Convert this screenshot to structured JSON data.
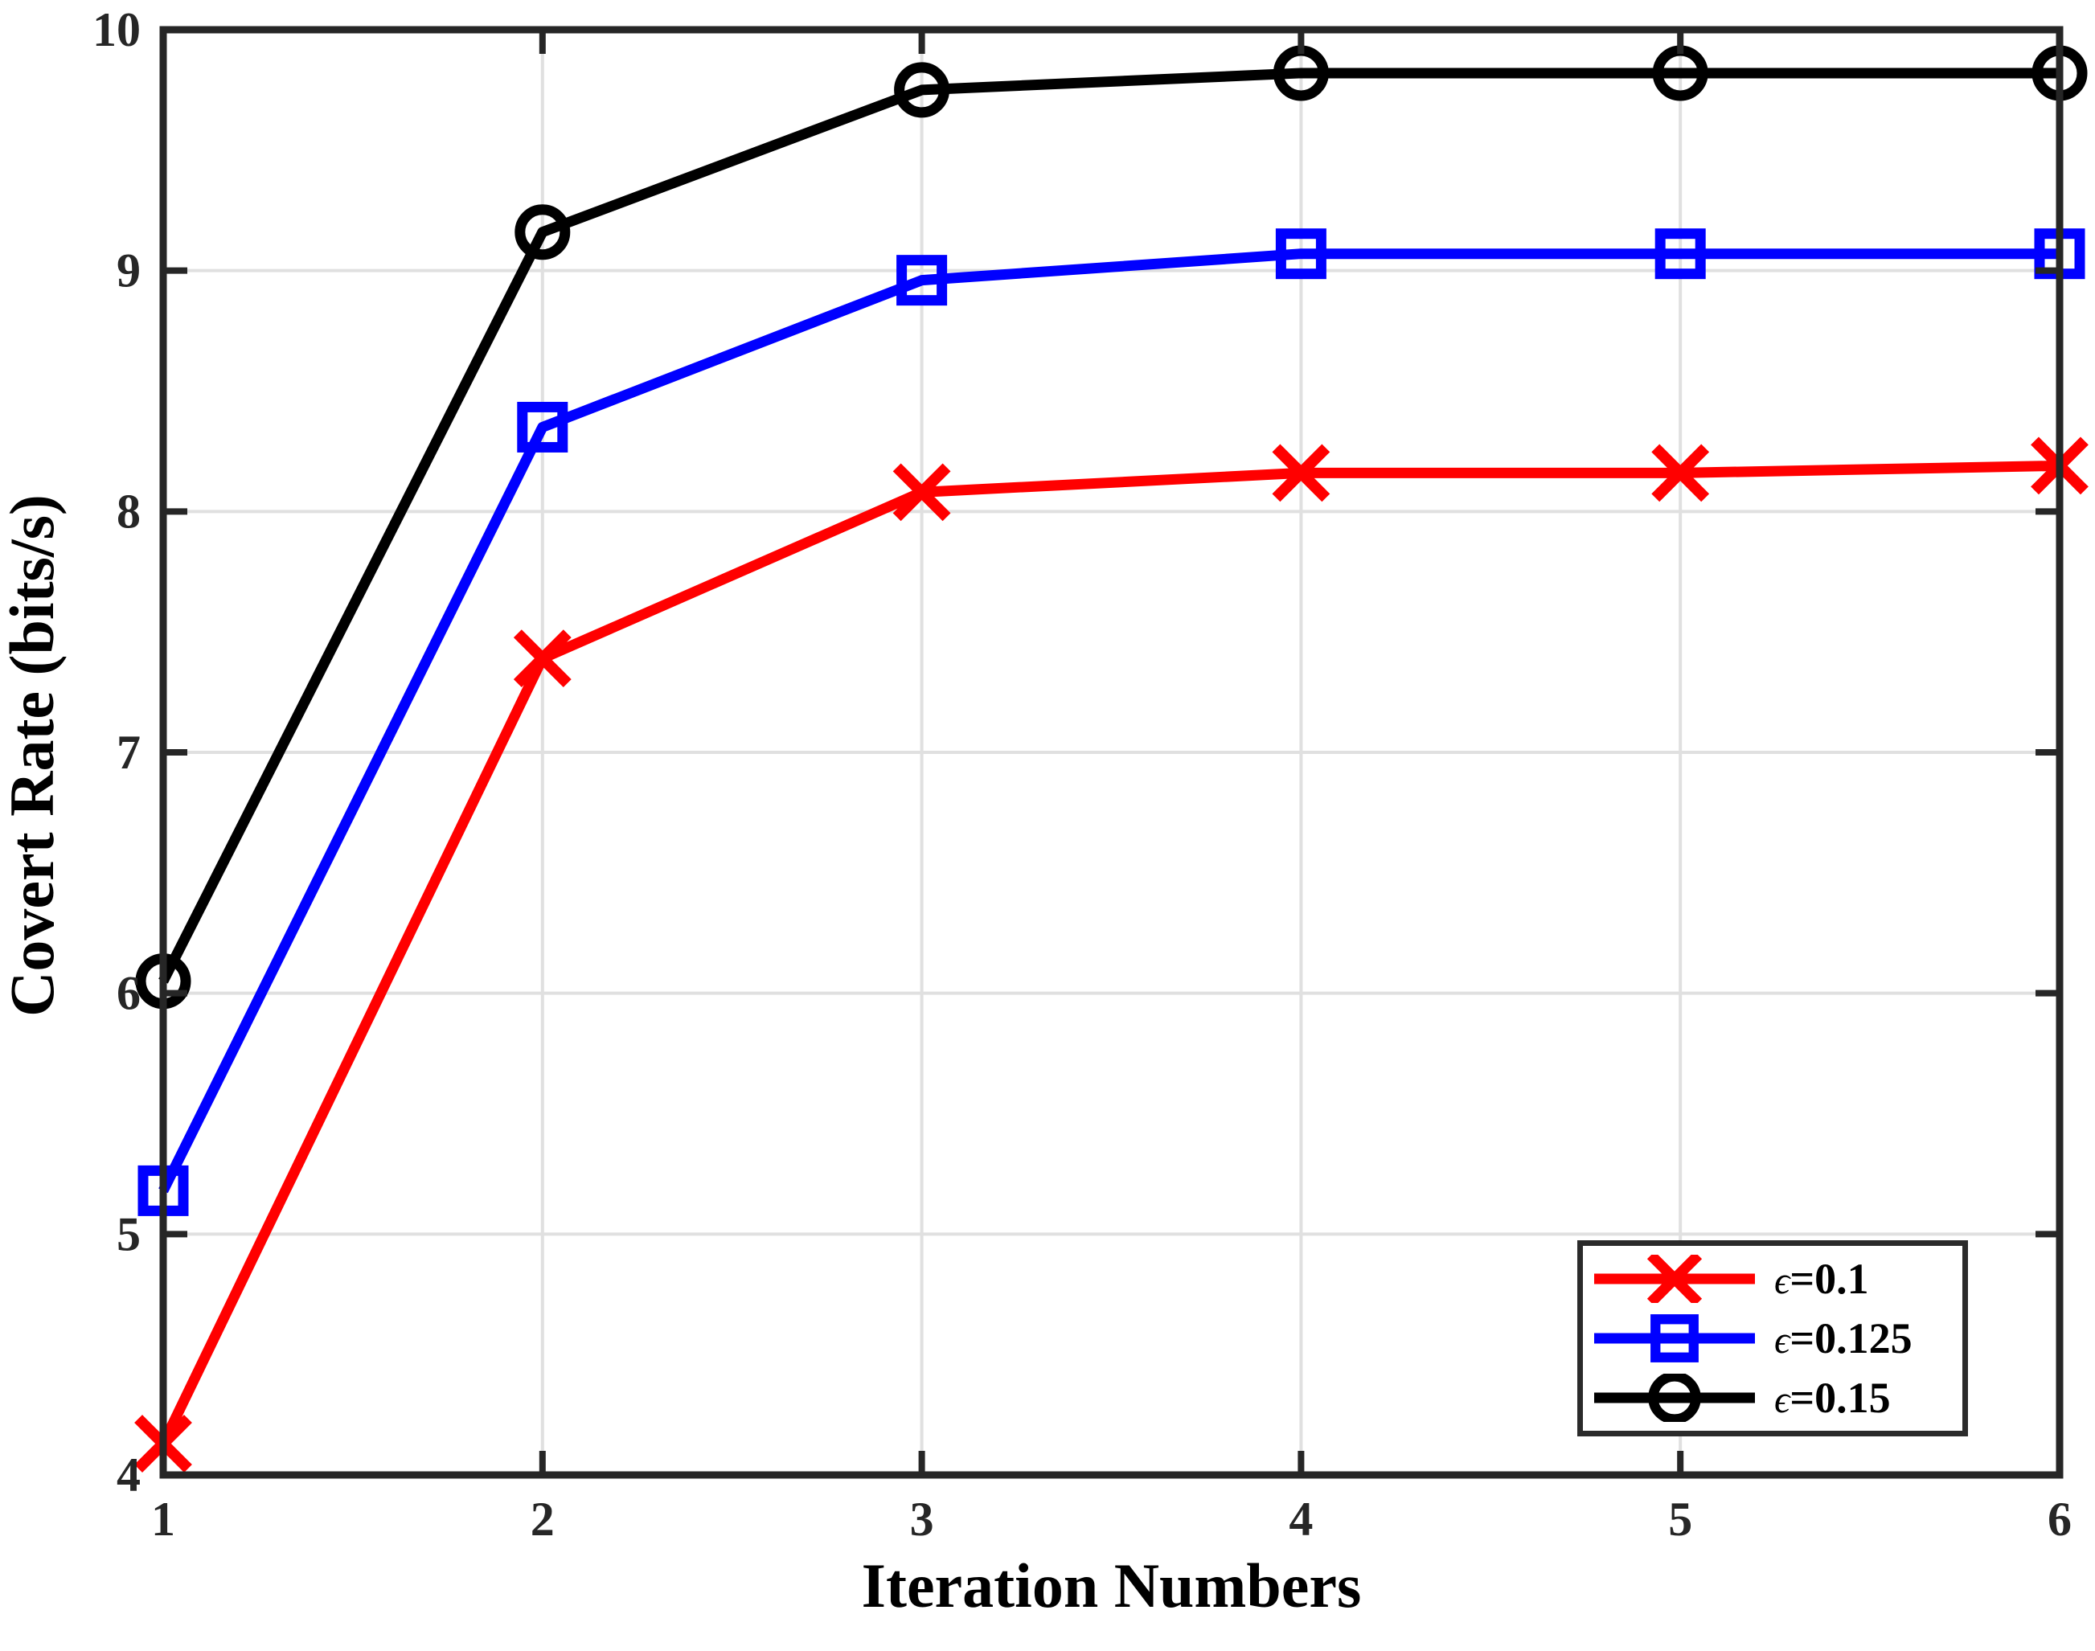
{
  "chart_data": {
    "type": "line",
    "title": "",
    "xlabel": "Iteration Numbers",
    "ylabel": "Covert Rate (bits/s)",
    "x": [
      1,
      2,
      3,
      4,
      5,
      6
    ],
    "xlim": [
      1,
      6
    ],
    "ylim": [
      4,
      10
    ],
    "xticks": [
      "1",
      "2",
      "3",
      "4",
      "5",
      "6"
    ],
    "yticks": [
      "4",
      "5",
      "6",
      "7",
      "8",
      "9",
      "10"
    ],
    "grid": true,
    "legend_position": "bottom-right",
    "series": [
      {
        "name": "ϵ=0.1",
        "color": "#ff0000",
        "marker": "cross",
        "values": [
          4.13,
          7.39,
          8.08,
          8.16,
          8.16,
          8.19
        ]
      },
      {
        "name": "ϵ=0.125",
        "color": "#0000ff",
        "marker": "square",
        "values": [
          5.18,
          8.35,
          8.96,
          9.07,
          9.07,
          9.07
        ]
      },
      {
        "name": "ϵ=0.15",
        "color": "#000000",
        "marker": "circle",
        "values": [
          6.05,
          9.16,
          9.75,
          9.82,
          9.82,
          9.82
        ]
      }
    ]
  },
  "style": {
    "axis_color": "#262626",
    "grid_color": "#e0e0e0",
    "tick_label_color": "#262626",
    "background": "#ffffff"
  }
}
